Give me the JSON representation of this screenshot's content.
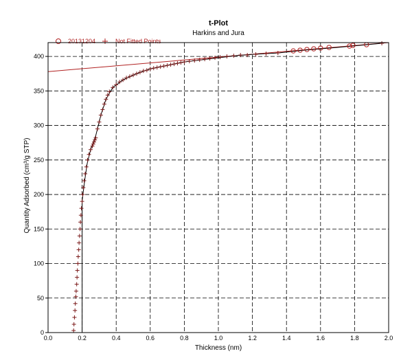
{
  "chart_data": {
    "type": "scatter",
    "title": "t-Plot",
    "subtitle": "Harkins and Jura",
    "xlabel": "Thickness (nm)",
    "ylabel": "Quantity Adsorbed (cm³/g STP)",
    "xlim": [
      0.0,
      2.0
    ],
    "ylim": [
      0,
      420
    ],
    "x_ticks": [
      "0.0",
      "0.2",
      "0.4",
      "0.6",
      "0.8",
      "1.0",
      "1.2",
      "1.4",
      "1.6",
      "1.8",
      "2.0"
    ],
    "y_ticks": [
      "0",
      "50",
      "100",
      "150",
      "200",
      "250",
      "300",
      "350",
      "400"
    ],
    "grid": true,
    "legend_position": "top-left",
    "colors": {
      "series": "#b02020",
      "line": "#b02020",
      "grid": "#000000"
    },
    "series": [
      {
        "name": "20131204",
        "marker": "circle",
        "points": [
          [
            1.44,
            408
          ],
          [
            1.48,
            409
          ],
          [
            1.52,
            410
          ],
          [
            1.56,
            411
          ],
          [
            1.6,
            412
          ],
          [
            1.65,
            413
          ],
          [
            1.77,
            415
          ],
          [
            1.79,
            416
          ],
          [
            1.87,
            417
          ]
        ]
      },
      {
        "name": "Not Fitted Points",
        "marker": "plus",
        "points": [
          [
            0.15,
            3
          ],
          [
            0.152,
            12
          ],
          [
            0.155,
            22
          ],
          [
            0.158,
            32
          ],
          [
            0.16,
            42
          ],
          [
            0.163,
            52
          ],
          [
            0.165,
            60
          ],
          [
            0.168,
            70
          ],
          [
            0.17,
            80
          ],
          [
            0.172,
            90
          ],
          [
            0.175,
            100
          ],
          [
            0.177,
            110
          ],
          [
            0.18,
            120
          ],
          [
            0.182,
            130
          ],
          [
            0.185,
            140
          ],
          [
            0.188,
            150
          ],
          [
            0.19,
            160
          ],
          [
            0.193,
            170
          ],
          [
            0.196,
            180
          ],
          [
            0.2,
            190
          ],
          [
            0.203,
            200
          ],
          [
            0.207,
            210
          ],
          [
            0.212,
            220
          ],
          [
            0.218,
            230
          ],
          [
            0.225,
            240
          ],
          [
            0.232,
            250
          ],
          [
            0.24,
            258
          ],
          [
            0.25,
            265
          ],
          [
            0.26,
            270
          ],
          [
            0.265,
            273
          ],
          [
            0.27,
            276
          ],
          [
            0.275,
            279
          ],
          [
            0.28,
            282
          ],
          [
            0.29,
            295
          ],
          [
            0.3,
            305
          ],
          [
            0.31,
            315
          ],
          [
            0.32,
            323
          ],
          [
            0.33,
            331
          ],
          [
            0.34,
            338
          ],
          [
            0.35,
            344
          ],
          [
            0.36,
            349
          ],
          [
            0.38,
            355
          ],
          [
            0.4,
            359
          ],
          [
            0.42,
            363
          ],
          [
            0.44,
            366
          ],
          [
            0.46,
            369
          ],
          [
            0.48,
            371
          ],
          [
            0.5,
            373
          ],
          [
            0.52,
            375
          ],
          [
            0.54,
            377
          ],
          [
            0.56,
            379
          ],
          [
            0.58,
            380
          ],
          [
            0.6,
            382
          ],
          [
            0.62,
            383
          ],
          [
            0.64,
            384
          ],
          [
            0.66,
            385
          ],
          [
            0.68,
            386
          ],
          [
            0.7,
            387
          ],
          [
            0.72,
            388
          ],
          [
            0.74,
            389
          ],
          [
            0.76,
            390
          ],
          [
            0.78,
            391
          ],
          [
            0.8,
            392
          ],
          [
            0.83,
            393
          ],
          [
            0.86,
            394
          ],
          [
            0.89,
            395
          ],
          [
            0.92,
            396
          ],
          [
            0.95,
            397
          ],
          [
            0.98,
            398
          ],
          [
            1.01,
            399
          ],
          [
            1.05,
            400
          ],
          [
            1.09,
            401
          ],
          [
            1.13,
            402
          ],
          [
            1.17,
            402
          ],
          [
            1.22,
            403
          ],
          [
            1.28,
            404
          ],
          [
            1.35,
            405
          ],
          [
            1.96,
            419
          ]
        ]
      }
    ],
    "fit_line": {
      "x": [
        0.0,
        2.0
      ],
      "y": [
        378,
        420
      ]
    },
    "knee_curve": {
      "points": [
        [
          0.2,
          0
        ],
        [
          0.2,
          190
        ],
        [
          0.205,
          200
        ],
        [
          0.215,
          220
        ],
        [
          0.23,
          245
        ],
        [
          0.25,
          265
        ],
        [
          0.28,
          285
        ],
        [
          0.31,
          315
        ],
        [
          0.34,
          338
        ],
        [
          0.38,
          355
        ],
        [
          0.44,
          366
        ],
        [
          0.52,
          375
        ],
        [
          0.6,
          382
        ],
        [
          0.7,
          387
        ],
        [
          0.8,
          392
        ],
        [
          0.9,
          395
        ],
        [
          1.0,
          398
        ],
        [
          1.1,
          401
        ],
        [
          1.2,
          403
        ],
        [
          1.35,
          405
        ],
        [
          1.5,
          409
        ],
        [
          1.7,
          413
        ],
        [
          1.96,
          419
        ]
      ]
    }
  }
}
